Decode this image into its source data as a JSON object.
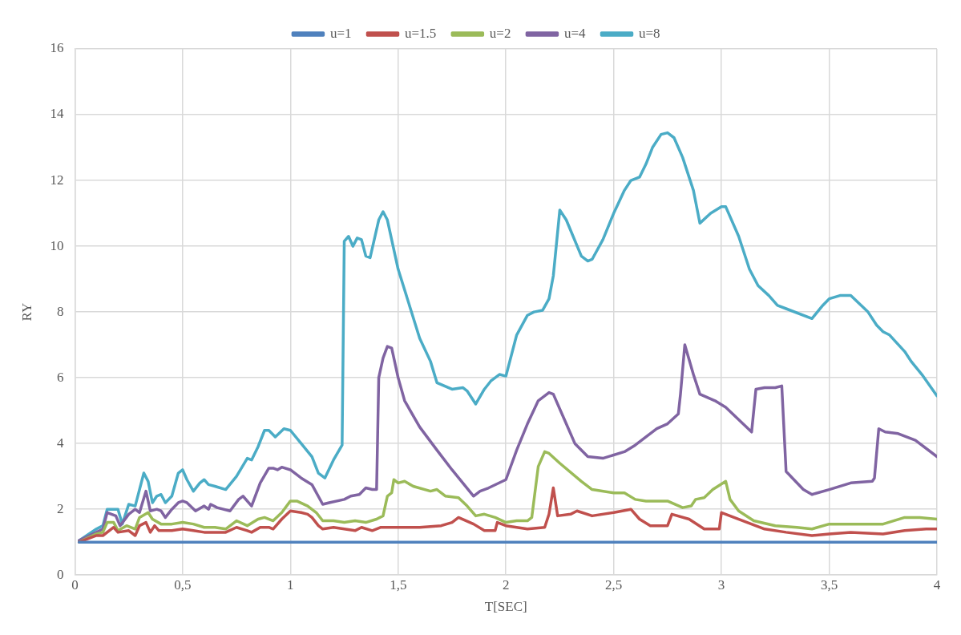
{
  "chart_data": {
    "type": "line",
    "xlabel": "T[SEC]",
    "ylabel": "RY",
    "xlim": [
      0,
      4
    ],
    "ylim": [
      0,
      16
    ],
    "xticks": [
      0,
      {
        "value": 0.5,
        "label": "0,5"
      },
      1,
      {
        "value": 1.5,
        "label": "1,5"
      },
      2,
      {
        "value": 2.5,
        "label": "2,5"
      },
      3,
      {
        "value": 3.5,
        "label": "3,5"
      },
      4
    ],
    "yticks": [
      0,
      2,
      4,
      6,
      8,
      10,
      12,
      14,
      16
    ],
    "grid": true,
    "legend": "top",
    "marker": "none",
    "line_style": "solid",
    "series": [
      {
        "name": "u=1",
        "color": "#4f81bd",
        "x": [
          0.02,
          0.5,
          1,
          1.5,
          2,
          2.5,
          3,
          3.5,
          4
        ],
        "values": [
          1,
          1,
          1,
          1,
          1,
          1,
          1,
          1,
          1
        ]
      },
      {
        "name": "u=1.5",
        "color": "#c0504d",
        "x": [
          0.02,
          0.1,
          0.13,
          0.18,
          0.2,
          0.25,
          0.28,
          0.3,
          0.33,
          0.35,
          0.37,
          0.39,
          0.45,
          0.5,
          0.55,
          0.6,
          0.7,
          0.75,
          0.8,
          0.82,
          0.86,
          0.9,
          0.92,
          0.96,
          1.0,
          1.05,
          1.08,
          1.1,
          1.13,
          1.15,
          1.2,
          1.25,
          1.3,
          1.33,
          1.38,
          1.42,
          1.5,
          1.6,
          1.7,
          1.75,
          1.78,
          1.85,
          1.9,
          1.95,
          1.96,
          2.0,
          2.05,
          2.1,
          2.18,
          2.2,
          2.22,
          2.24,
          2.3,
          2.33,
          2.4,
          2.5,
          2.58,
          2.62,
          2.67,
          2.75,
          2.77,
          2.85,
          2.92,
          2.99,
          3.0,
          3.1,
          3.2,
          3.3,
          3.42,
          3.5,
          3.6,
          3.75,
          3.85,
          3.95,
          4.0
        ],
        "values": [
          1.0,
          1.2,
          1.2,
          1.45,
          1.3,
          1.35,
          1.2,
          1.5,
          1.6,
          1.3,
          1.5,
          1.35,
          1.35,
          1.4,
          1.35,
          1.3,
          1.3,
          1.45,
          1.35,
          1.3,
          1.45,
          1.45,
          1.4,
          1.7,
          1.95,
          1.9,
          1.85,
          1.75,
          1.5,
          1.4,
          1.45,
          1.4,
          1.35,
          1.45,
          1.35,
          1.45,
          1.45,
          1.45,
          1.5,
          1.6,
          1.75,
          1.55,
          1.35,
          1.35,
          1.6,
          1.5,
          1.45,
          1.4,
          1.45,
          1.85,
          2.65,
          1.8,
          1.85,
          1.95,
          1.8,
          1.9,
          2.0,
          1.7,
          1.5,
          1.5,
          1.85,
          1.7,
          1.4,
          1.4,
          1.9,
          1.65,
          1.4,
          1.3,
          1.2,
          1.25,
          1.3,
          1.25,
          1.35,
          1.4,
          1.4
        ]
      },
      {
        "name": "u=2",
        "color": "#9bbb59",
        "x": [
          0.02,
          0.1,
          0.13,
          0.15,
          0.18,
          0.2,
          0.24,
          0.28,
          0.3,
          0.34,
          0.36,
          0.4,
          0.45,
          0.5,
          0.55,
          0.6,
          0.65,
          0.7,
          0.75,
          0.8,
          0.85,
          0.88,
          0.92,
          0.96,
          1.0,
          1.03,
          1.08,
          1.12,
          1.15,
          1.2,
          1.25,
          1.3,
          1.35,
          1.4,
          1.43,
          1.45,
          1.47,
          1.48,
          1.5,
          1.53,
          1.57,
          1.65,
          1.68,
          1.72,
          1.78,
          1.82,
          1.86,
          1.9,
          1.95,
          2.0,
          2.05,
          2.1,
          2.12,
          2.15,
          2.18,
          2.2,
          2.25,
          2.35,
          2.4,
          2.5,
          2.55,
          2.6,
          2.65,
          2.75,
          2.82,
          2.86,
          2.88,
          2.92,
          2.96,
          3.02,
          3.04,
          3.08,
          3.15,
          3.25,
          3.35,
          3.42,
          3.5,
          3.6,
          3.75,
          3.85,
          3.92,
          4.0
        ],
        "values": [
          1.0,
          1.25,
          1.3,
          1.6,
          1.6,
          1.35,
          1.5,
          1.4,
          1.75,
          1.9,
          1.7,
          1.55,
          1.55,
          1.6,
          1.55,
          1.45,
          1.45,
          1.4,
          1.65,
          1.5,
          1.7,
          1.75,
          1.65,
          1.9,
          2.25,
          2.25,
          2.1,
          1.9,
          1.65,
          1.65,
          1.6,
          1.65,
          1.6,
          1.7,
          1.8,
          2.4,
          2.5,
          2.9,
          2.8,
          2.85,
          2.7,
          2.55,
          2.6,
          2.4,
          2.35,
          2.1,
          1.8,
          1.85,
          1.75,
          1.6,
          1.65,
          1.65,
          1.75,
          3.3,
          3.75,
          3.7,
          3.4,
          2.85,
          2.6,
          2.5,
          2.5,
          2.3,
          2.25,
          2.25,
          2.05,
          2.1,
          2.3,
          2.35,
          2.6,
          2.85,
          2.3,
          1.95,
          1.65,
          1.5,
          1.45,
          1.4,
          1.55,
          1.55,
          1.55,
          1.75,
          1.75,
          1.7
        ]
      },
      {
        "name": "u=4",
        "color": "#8064a2",
        "x": [
          0.02,
          0.1,
          0.13,
          0.15,
          0.19,
          0.21,
          0.25,
          0.28,
          0.3,
          0.33,
          0.35,
          0.38,
          0.4,
          0.42,
          0.45,
          0.48,
          0.5,
          0.52,
          0.56,
          0.6,
          0.62,
          0.63,
          0.66,
          0.72,
          0.76,
          0.78,
          0.82,
          0.86,
          0.9,
          0.92,
          0.94,
          0.96,
          1.0,
          1.05,
          1.1,
          1.15,
          1.18,
          1.25,
          1.28,
          1.32,
          1.35,
          1.38,
          1.4,
          1.41,
          1.43,
          1.45,
          1.47,
          1.5,
          1.53,
          1.6,
          1.68,
          1.75,
          1.85,
          1.88,
          1.92,
          2.0,
          2.05,
          2.1,
          2.15,
          2.2,
          2.22,
          2.28,
          2.32,
          2.38,
          2.45,
          2.55,
          2.6,
          2.65,
          2.7,
          2.75,
          2.8,
          2.81,
          2.83,
          2.87,
          2.9,
          2.97,
          3.02,
          3.1,
          3.14,
          3.16,
          3.2,
          3.25,
          3.28,
          3.3,
          3.38,
          3.42,
          3.5,
          3.6,
          3.7,
          3.71,
          3.73,
          3.76,
          3.82,
          3.9,
          4.0
        ],
        "values": [
          1.05,
          1.3,
          1.4,
          1.9,
          1.8,
          1.5,
          1.85,
          2.0,
          1.9,
          2.55,
          1.95,
          2.0,
          1.95,
          1.75,
          2.0,
          2.2,
          2.25,
          2.2,
          1.95,
          2.1,
          2.0,
          2.15,
          2.05,
          1.95,
          2.3,
          2.4,
          2.1,
          2.8,
          3.25,
          3.25,
          3.2,
          3.28,
          3.2,
          2.95,
          2.75,
          2.15,
          2.2,
          2.3,
          2.4,
          2.45,
          2.65,
          2.6,
          2.6,
          6.0,
          6.6,
          6.95,
          6.9,
          6.0,
          5.3,
          4.5,
          3.8,
          3.2,
          2.4,
          2.55,
          2.65,
          2.9,
          3.8,
          4.6,
          5.3,
          5.55,
          5.5,
          4.6,
          4.0,
          3.6,
          3.55,
          3.75,
          3.95,
          4.2,
          4.45,
          4.6,
          4.9,
          5.5,
          7.0,
          6.1,
          5.5,
          5.3,
          5.1,
          4.6,
          4.35,
          5.65,
          5.7,
          5.7,
          5.75,
          3.15,
          2.6,
          2.45,
          2.6,
          2.8,
          2.85,
          2.95,
          4.45,
          4.35,
          4.3,
          4.1,
          3.6
        ]
      },
      {
        "name": "u=8",
        "color": "#4bacc6",
        "x": [
          0.02,
          0.1,
          0.13,
          0.15,
          0.2,
          0.22,
          0.25,
          0.28,
          0.32,
          0.34,
          0.36,
          0.38,
          0.4,
          0.42,
          0.45,
          0.48,
          0.5,
          0.52,
          0.55,
          0.58,
          0.6,
          0.62,
          0.65,
          0.7,
          0.75,
          0.8,
          0.82,
          0.85,
          0.88,
          0.9,
          0.93,
          0.97,
          1.0,
          1.05,
          1.1,
          1.13,
          1.16,
          1.2,
          1.24,
          1.25,
          1.27,
          1.29,
          1.31,
          1.33,
          1.35,
          1.37,
          1.41,
          1.43,
          1.45,
          1.5,
          1.6,
          1.65,
          1.68,
          1.75,
          1.8,
          1.82,
          1.86,
          1.9,
          1.93,
          1.97,
          2.0,
          2.05,
          2.1,
          2.13,
          2.17,
          2.2,
          2.22,
          2.25,
          2.28,
          2.35,
          2.38,
          2.4,
          2.45,
          2.5,
          2.55,
          2.58,
          2.62,
          2.65,
          2.68,
          2.72,
          2.75,
          2.78,
          2.82,
          2.87,
          2.9,
          2.95,
          3.0,
          3.02,
          3.08,
          3.13,
          3.17,
          3.22,
          3.26,
          3.3,
          3.42,
          3.47,
          3.5,
          3.55,
          3.6,
          3.68,
          3.72,
          3.75,
          3.78,
          3.85,
          3.88,
          3.93,
          4.0
        ],
        "values": [
          1.05,
          1.4,
          1.5,
          2.0,
          2.0,
          1.55,
          2.15,
          2.1,
          3.1,
          2.85,
          2.2,
          2.4,
          2.45,
          2.2,
          2.4,
          3.1,
          3.2,
          2.9,
          2.55,
          2.8,
          2.9,
          2.75,
          2.7,
          2.6,
          3.0,
          3.55,
          3.5,
          3.9,
          4.4,
          4.4,
          4.2,
          4.45,
          4.4,
          4.0,
          3.6,
          3.1,
          2.95,
          3.5,
          3.95,
          10.15,
          10.3,
          10.0,
          10.25,
          10.2,
          9.7,
          9.65,
          10.8,
          11.05,
          10.8,
          9.3,
          7.2,
          6.5,
          5.85,
          5.65,
          5.7,
          5.6,
          5.2,
          5.65,
          5.9,
          6.1,
          6.05,
          7.3,
          7.9,
          8.0,
          8.05,
          8.4,
          9.1,
          11.1,
          10.8,
          9.7,
          9.55,
          9.6,
          10.2,
          11.0,
          11.7,
          12.0,
          12.1,
          12.5,
          13.0,
          13.4,
          13.45,
          13.3,
          12.7,
          11.7,
          10.7,
          11.0,
          11.2,
          11.2,
          10.3,
          9.3,
          8.8,
          8.5,
          8.2,
          8.1,
          7.8,
          8.2,
          8.4,
          8.5,
          8.5,
          8.0,
          7.6,
          7.4,
          7.3,
          6.8,
          6.5,
          6.1,
          5.45
        ]
      }
    ]
  }
}
